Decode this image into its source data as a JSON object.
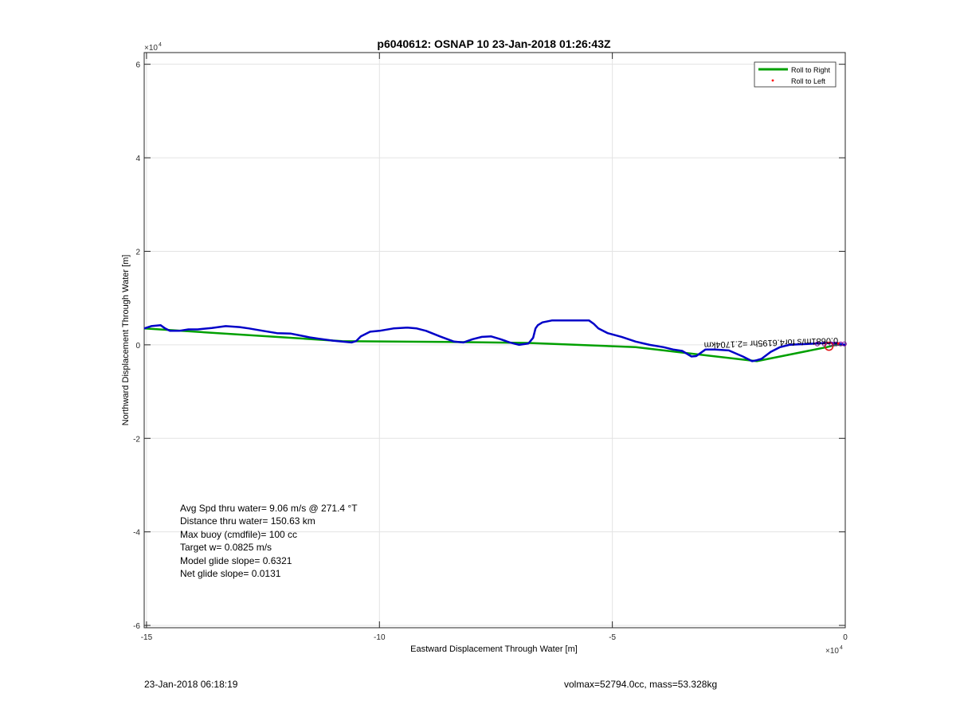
{
  "chart_data": {
    "type": "line",
    "title": "p6040612: OSNAP 10 23-Jan-2018 01:26:43Z",
    "xlabel": "Eastward Displacement Through Water [m]",
    "ylabel": "Northward Displacement Through Water [m]",
    "x_exponent": "×10^4",
    "y_exponent": "×10^4",
    "xlim": [
      -15.05,
      0
    ],
    "ylim": [
      -6.05,
      6.25
    ],
    "x_ticks": [
      -15,
      -10,
      -5,
      0
    ],
    "y_ticks": [
      -6,
      -4,
      -2,
      0,
      2,
      4,
      6
    ],
    "x_tick_labels": [
      "-15",
      "-10",
      "-5",
      "0"
    ],
    "y_tick_labels": [
      "-6",
      "-4",
      "-2",
      "0",
      "2",
      "4",
      "6"
    ],
    "grid": true,
    "legend_position": "top-right",
    "legend": [
      {
        "label": "Roll to Right",
        "color": "#00a000",
        "marker": "line"
      },
      {
        "label": "Roll to Left",
        "color": "#ff0000",
        "marker": "dot"
      }
    ],
    "series": [
      {
        "color": "#0000c8",
        "x": [
          -15.05,
          -14.9,
          -14.7,
          -14.6,
          -14.5,
          -14.3,
          -14.1,
          -13.9,
          -13.6,
          -13.3,
          -13.0,
          -12.8,
          -12.5,
          -12.2,
          -11.9,
          -11.7,
          -11.5,
          -11.3,
          -11.0,
          -10.8,
          -10.6,
          -10.5,
          -10.4,
          -10.2,
          -10.0,
          -9.7,
          -9.4,
          -9.2,
          -9.0,
          -8.7,
          -8.4,
          -8.2,
          -8.0,
          -7.8,
          -7.6,
          -7.4,
          -7.2,
          -7.0,
          -6.8,
          -6.7,
          -6.65,
          -6.6,
          -6.5,
          -6.3,
          -6.0,
          -5.7,
          -5.5,
          -5.4,
          -5.3,
          -5.1,
          -4.8,
          -4.5,
          -4.2,
          -3.9,
          -3.7,
          -3.5,
          -3.3,
          -3.2,
          -3.0,
          -2.8,
          -2.5,
          -2.2,
          -2.0,
          -1.9,
          -1.8,
          -1.6,
          -1.4,
          -1.2,
          -1.0,
          -0.8,
          -0.6,
          -0.4,
          -0.3,
          -0.2,
          -0.1,
          0
        ],
        "y": [
          0.35,
          0.4,
          0.42,
          0.35,
          0.3,
          0.3,
          0.33,
          0.33,
          0.36,
          0.4,
          0.38,
          0.35,
          0.3,
          0.25,
          0.24,
          0.2,
          0.16,
          0.13,
          0.09,
          0.07,
          0.05,
          0.08,
          0.18,
          0.28,
          0.3,
          0.35,
          0.37,
          0.35,
          0.3,
          0.18,
          0.07,
          0.05,
          0.12,
          0.17,
          0.18,
          0.12,
          0.05,
          0.0,
          0.03,
          0.15,
          0.35,
          0.42,
          0.48,
          0.52,
          0.52,
          0.52,
          0.52,
          0.45,
          0.35,
          0.25,
          0.17,
          0.07,
          0.0,
          -0.05,
          -0.1,
          -0.13,
          -0.25,
          -0.24,
          -0.1,
          -0.1,
          -0.12,
          -0.25,
          -0.35,
          -0.33,
          -0.3,
          -0.15,
          -0.05,
          0.0,
          0.01,
          0.02,
          0.03,
          0.04,
          0.04,
          0.03,
          0.02,
          0.0
        ]
      },
      {
        "color": "#00a000",
        "x": [
          -15.05,
          -10.8,
          -8.5,
          -6.8,
          -4.5,
          -1.9,
          -0.4,
          -0.2,
          0
        ],
        "y": [
          0.35,
          0.08,
          0.06,
          0.04,
          -0.05,
          -0.35,
          -0.05,
          0.0,
          0.0
        ]
      }
    ],
    "annotations": {
      "stats": [
        "Avg Spd thru water=  9.06 m/s @ 271.4 °T",
        "Distance thru water= 150.63 km",
        "Max buoy (cmdfile)= 100 cc",
        "Target w= 0.0825 m/s",
        "Model glide slope= 0.6321",
        "Net glide slope= 0.0131"
      ],
      "rotated_label": "0.0681m/s for4.6195hr =2.1704km"
    }
  },
  "footer": {
    "left": "23-Jan-2018 06:18:19",
    "right": "volmax=52794.0cc, mass=53.328kg"
  }
}
